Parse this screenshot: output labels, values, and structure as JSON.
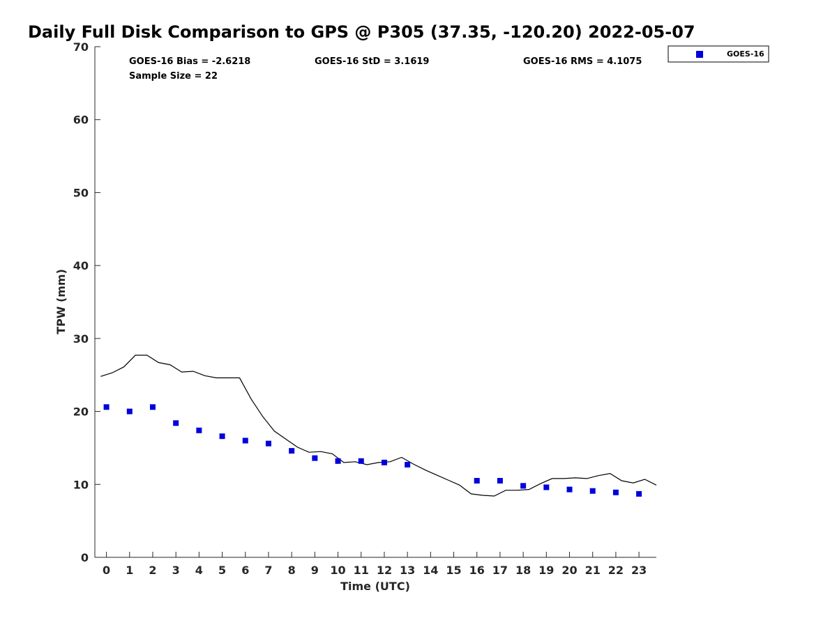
{
  "title": "Daily Full Disk Comparison to GPS @ P305 (37.35, -120.20) 2022-05-07",
  "stats": {
    "bias": "GOES-16 Bias = -2.6218",
    "std": "GOES-16 StD = 3.1619",
    "rms": "GOES-16 RMS = 4.1075",
    "sample": "Sample Size = 22"
  },
  "colors": {
    "goes": "#0000dd",
    "gps_line": "#000000",
    "axis": "#262626"
  },
  "chart_data": {
    "type": "scatter",
    "title": "Daily Full Disk Comparison to GPS @ P305 (37.35, -120.20) 2022-05-07",
    "xlabel": "Time (UTC)",
    "ylabel": "TPW (mm)",
    "xlim": [
      -0.5,
      23.75
    ],
    "ylim": [
      0,
      70
    ],
    "xticks": [
      0,
      1,
      2,
      3,
      4,
      5,
      6,
      7,
      8,
      9,
      10,
      11,
      12,
      13,
      14,
      15,
      16,
      17,
      18,
      19,
      20,
      21,
      22,
      23
    ],
    "yticks": [
      0,
      10,
      20,
      30,
      40,
      50,
      60,
      70
    ],
    "legend_position": "outside top-right",
    "series": [
      {
        "name": "GOES-16",
        "type": "scatter",
        "x": [
          0,
          1,
          2,
          3,
          4,
          5,
          6,
          7,
          8,
          9,
          10,
          11,
          12,
          13,
          16,
          17,
          18,
          19,
          20,
          21,
          22,
          23
        ],
        "y": [
          20.6,
          20.0,
          20.6,
          18.4,
          17.4,
          16.6,
          16.0,
          15.6,
          14.6,
          13.6,
          13.2,
          13.2,
          13.0,
          12.7,
          10.5,
          10.5,
          9.8,
          9.6,
          9.3,
          9.1,
          8.9,
          8.7
        ]
      },
      {
        "type": "line",
        "x": [
          -0.25,
          0.25,
          0.75,
          1.25,
          1.75,
          2.25,
          2.75,
          3.25,
          3.75,
          4.25,
          4.75,
          5.25,
          5.75,
          6.25,
          6.75,
          7.25,
          7.75,
          8.25,
          8.75,
          9.25,
          9.75,
          10.25,
          10.75,
          11.25,
          11.75,
          12.25,
          12.75,
          13.25,
          13.75,
          14.25,
          14.75,
          15.25,
          15.75,
          16.25,
          16.75,
          17.25,
          17.75,
          18.25,
          18.75,
          19.25,
          19.75,
          20.25,
          20.75,
          21.25,
          21.75,
          22.25,
          22.75,
          23.25,
          23.75
        ],
        "y": [
          24.8,
          25.3,
          26.1,
          27.7,
          27.7,
          26.7,
          26.4,
          25.4,
          25.5,
          24.9,
          24.6,
          24.6,
          24.6,
          21.7,
          19.3,
          17.3,
          16.2,
          15.1,
          14.4,
          14.5,
          14.2,
          13.0,
          13.1,
          12.7,
          13.0,
          13.1,
          13.7,
          12.8,
          12.0,
          11.3,
          10.6,
          9.9,
          8.7,
          8.5,
          8.4,
          9.2,
          9.2,
          9.3,
          10.1,
          10.8,
          10.8,
          10.9,
          10.8,
          11.2,
          11.5,
          10.5,
          10.2,
          10.7,
          9.9
        ]
      }
    ]
  }
}
